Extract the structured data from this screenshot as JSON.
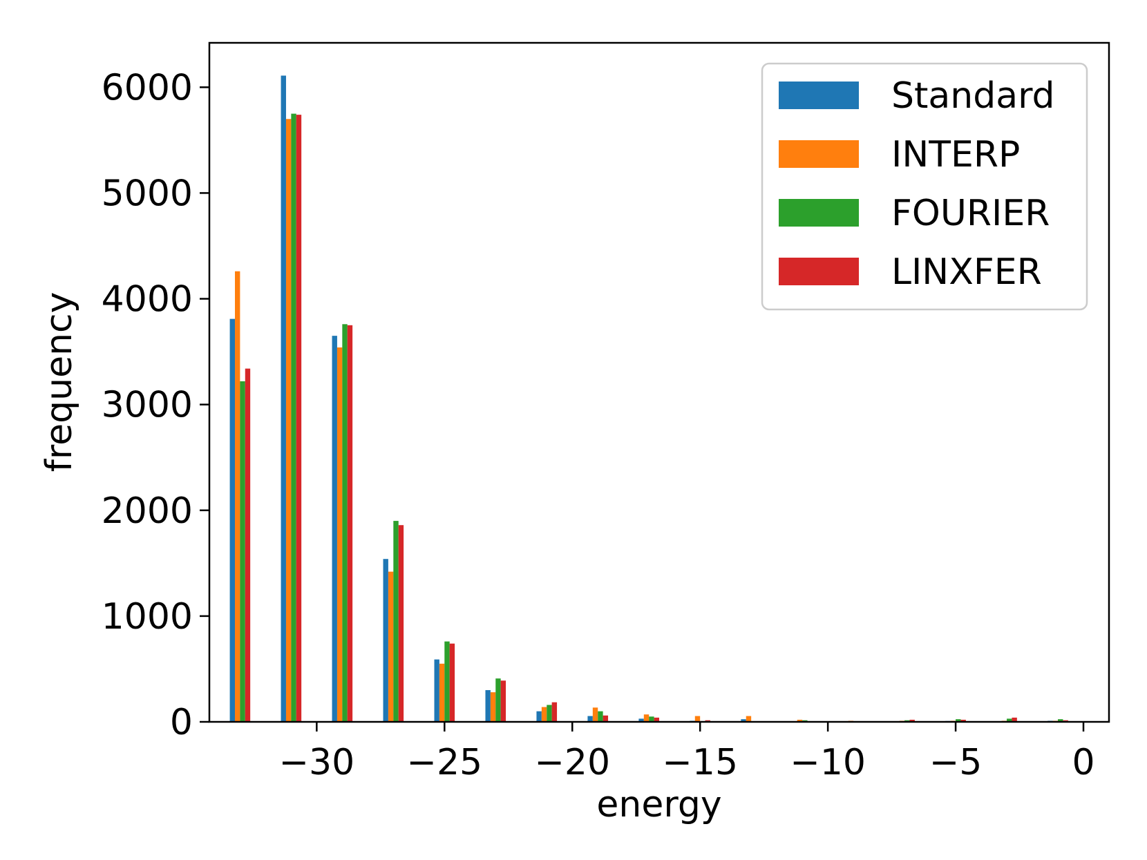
{
  "chart_data": {
    "type": "bar",
    "title": "",
    "xlabel": "energy",
    "ylabel": "frequency",
    "xlim": [
      -34.2,
      1.0
    ],
    "ylim": [
      0,
      6420
    ],
    "xticks": [
      -30,
      -25,
      -20,
      -15,
      -10,
      -5,
      0
    ],
    "xtick_labels": [
      "−30",
      "−25",
      "−20",
      "−15",
      "−10",
      "−5",
      "0"
    ],
    "yticks": [
      0,
      1000,
      2000,
      3000,
      4000,
      5000,
      6000
    ],
    "ytick_labels": [
      "0",
      "1000",
      "2000",
      "3000",
      "4000",
      "5000",
      "6000"
    ],
    "grid": false,
    "legend_position": "upper right",
    "bin_centers": [
      -33.0,
      -31.0,
      -29.0,
      -27.0,
      -25.0,
      -23.0,
      -21.0,
      -19.0,
      -17.0,
      -15.0,
      -13.0,
      -11.0,
      -9.0,
      -7.0,
      -5.0,
      -3.0,
      -1.0
    ],
    "bin_width": 0.8,
    "series": [
      {
        "name": "Standard",
        "color": "#1f77b4",
        "values": [
          3810,
          6110,
          3650,
          1540,
          590,
          300,
          100,
          55,
          30,
          10,
          25,
          5,
          3,
          3,
          8,
          5,
          10
        ]
      },
      {
        "name": "INTERP",
        "color": "#ff7f0e",
        "values": [
          4260,
          5700,
          3540,
          1420,
          550,
          280,
          140,
          135,
          70,
          55,
          55,
          20,
          10,
          10,
          10,
          10,
          10
        ]
      },
      {
        "name": "FOURIER",
        "color": "#2ca02c",
        "values": [
          3220,
          5750,
          3760,
          1900,
          760,
          410,
          160,
          100,
          50,
          5,
          5,
          15,
          5,
          15,
          25,
          30,
          25
        ]
      },
      {
        "name": "LINXFER",
        "color": "#d62728",
        "values": [
          3340,
          5740,
          3750,
          1860,
          740,
          390,
          185,
          60,
          40,
          15,
          5,
          5,
          5,
          20,
          20,
          40,
          15
        ]
      }
    ]
  }
}
